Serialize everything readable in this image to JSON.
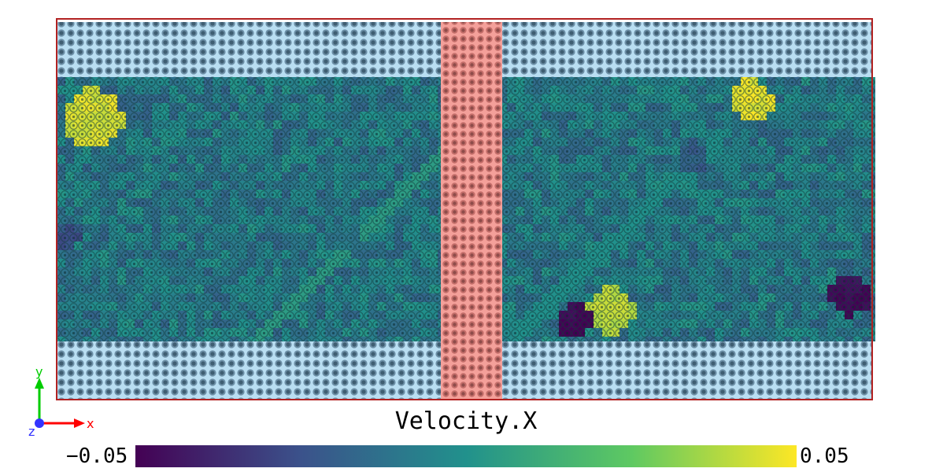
{
  "colorbar": {
    "title": "Velocity.X",
    "min_label": "−0.05",
    "max_label": "0.05",
    "min": -0.05,
    "max": 0.05,
    "colormap": "viridis",
    "colors": [
      "#440154",
      "#3b528b",
      "#21918c",
      "#5ec962",
      "#fde725"
    ]
  },
  "axes_triad": {
    "x_label": "x",
    "y_label": "y",
    "z_label": "z",
    "x_color": "#ff0000",
    "y_color": "#00cc00",
    "z_color": "#3333ff"
  },
  "scene": {
    "cell_box_color": "#b22222",
    "fixed_layer_color": "#a8d8f0",
    "inclusion_color": "#f08080",
    "atom_outline_color": "#3a5a6a"
  }
}
